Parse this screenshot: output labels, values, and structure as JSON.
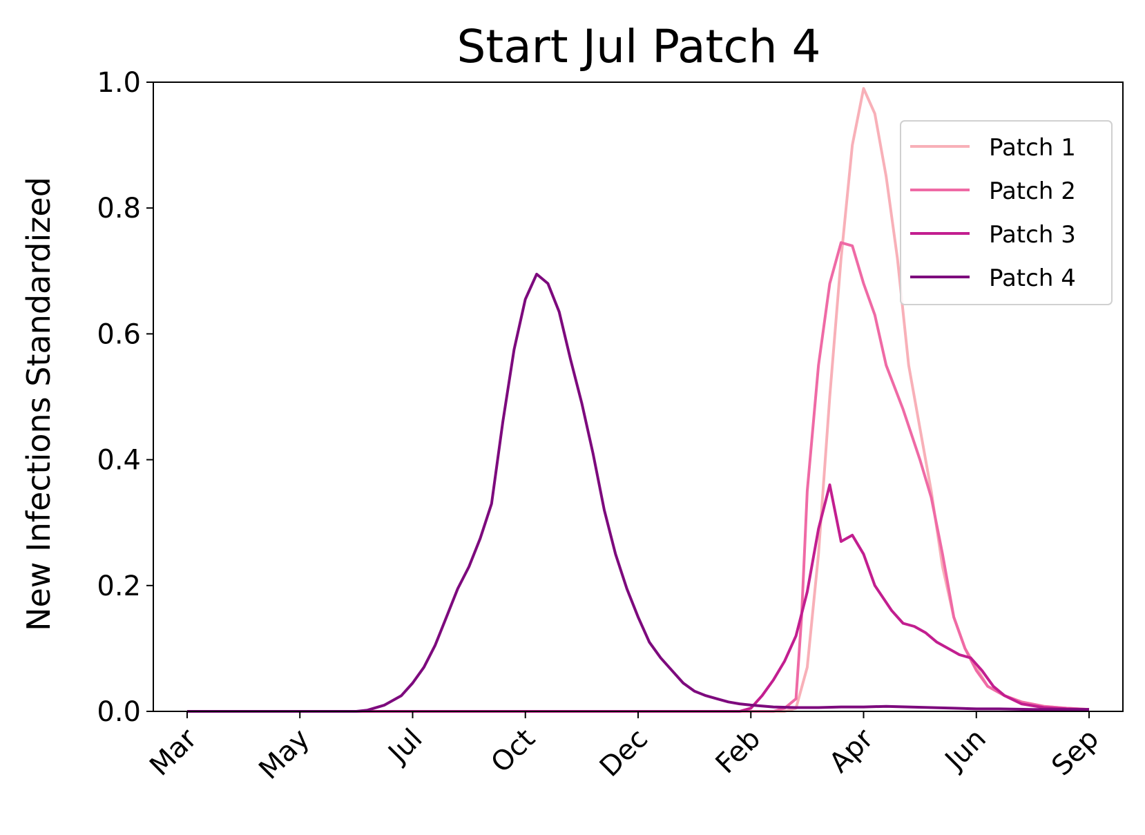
{
  "chart_data": {
    "type": "line",
    "title": "Start Jul Patch 4",
    "xlabel": "",
    "ylabel": "New Infections Standardized",
    "ylim": [
      0,
      1.0
    ],
    "yticks": [
      "0.0",
      "0.2",
      "0.4",
      "0.6",
      "0.8",
      "1.0"
    ],
    "xticks": [
      "Mar",
      "May",
      "Jul",
      "Oct",
      "Dec",
      "Feb",
      "Apr",
      "Jun",
      "Sep"
    ],
    "xlim_index": [
      -0.3,
      8.3
    ],
    "grid": false,
    "legend_position": "upper right",
    "series": [
      {
        "name": "Patch 1",
        "color": "#f8b0b8",
        "points": [
          [
            0,
            0
          ],
          [
            5.3,
            0
          ],
          [
            5.4,
            0.005
          ],
          [
            5.5,
            0.07
          ],
          [
            5.6,
            0.25
          ],
          [
            5.7,
            0.5
          ],
          [
            5.8,
            0.72
          ],
          [
            5.9,
            0.9
          ],
          [
            6.0,
            0.99
          ],
          [
            6.1,
            0.95
          ],
          [
            6.2,
            0.85
          ],
          [
            6.3,
            0.72
          ],
          [
            6.4,
            0.55
          ],
          [
            6.5,
            0.45
          ],
          [
            6.6,
            0.35
          ],
          [
            6.7,
            0.23
          ],
          [
            6.8,
            0.15
          ],
          [
            6.9,
            0.1
          ],
          [
            7.0,
            0.07
          ],
          [
            7.1,
            0.04
          ],
          [
            7.25,
            0.025
          ],
          [
            7.4,
            0.015
          ],
          [
            7.6,
            0.008
          ],
          [
            7.8,
            0.005
          ],
          [
            8.0,
            0.003
          ]
        ]
      },
      {
        "name": "Patch 2",
        "color": "#ef6aa5",
        "points": [
          [
            0,
            0
          ],
          [
            5.2,
            0
          ],
          [
            5.3,
            0.005
          ],
          [
            5.4,
            0.02
          ],
          [
            5.45,
            0.15
          ],
          [
            5.5,
            0.35
          ],
          [
            5.6,
            0.55
          ],
          [
            5.7,
            0.68
          ],
          [
            5.8,
            0.745
          ],
          [
            5.9,
            0.74
          ],
          [
            6.0,
            0.68
          ],
          [
            6.1,
            0.63
          ],
          [
            6.2,
            0.55
          ],
          [
            6.35,
            0.48
          ],
          [
            6.5,
            0.4
          ],
          [
            6.6,
            0.34
          ],
          [
            6.7,
            0.25
          ],
          [
            6.8,
            0.15
          ],
          [
            6.9,
            0.1
          ],
          [
            7.0,
            0.065
          ],
          [
            7.1,
            0.04
          ],
          [
            7.25,
            0.025
          ],
          [
            7.4,
            0.015
          ],
          [
            7.6,
            0.008
          ],
          [
            7.8,
            0.005
          ],
          [
            8.0,
            0.003
          ]
        ]
      },
      {
        "name": "Patch 3",
        "color": "#c21e8f",
        "points": [
          [
            0,
            0
          ],
          [
            4.9,
            0
          ],
          [
            5.0,
            0.005
          ],
          [
            5.1,
            0.025
          ],
          [
            5.2,
            0.05
          ],
          [
            5.3,
            0.08
          ],
          [
            5.4,
            0.12
          ],
          [
            5.5,
            0.19
          ],
          [
            5.6,
            0.29
          ],
          [
            5.7,
            0.36
          ],
          [
            5.8,
            0.27
          ],
          [
            5.9,
            0.28
          ],
          [
            6.0,
            0.25
          ],
          [
            6.1,
            0.2
          ],
          [
            6.25,
            0.16
          ],
          [
            6.35,
            0.14
          ],
          [
            6.45,
            0.135
          ],
          [
            6.55,
            0.125
          ],
          [
            6.65,
            0.11
          ],
          [
            6.75,
            0.1
          ],
          [
            6.85,
            0.09
          ],
          [
            6.95,
            0.085
          ],
          [
            7.05,
            0.065
          ],
          [
            7.15,
            0.04
          ],
          [
            7.25,
            0.025
          ],
          [
            7.4,
            0.012
          ],
          [
            7.6,
            0.006
          ],
          [
            7.8,
            0.004
          ],
          [
            8.0,
            0.003
          ]
        ]
      },
      {
        "name": "Patch 4",
        "color": "#7d0a7d",
        "points": [
          [
            0,
            0
          ],
          [
            1.5,
            0
          ],
          [
            1.6,
            0.002
          ],
          [
            1.75,
            0.01
          ],
          [
            1.9,
            0.025
          ],
          [
            2.0,
            0.045
          ],
          [
            2.1,
            0.07
          ],
          [
            2.2,
            0.105
          ],
          [
            2.3,
            0.15
          ],
          [
            2.4,
            0.195
          ],
          [
            2.5,
            0.23
          ],
          [
            2.6,
            0.275
          ],
          [
            2.7,
            0.33
          ],
          [
            2.8,
            0.46
          ],
          [
            2.9,
            0.575
          ],
          [
            3.0,
            0.655
          ],
          [
            3.1,
            0.695
          ],
          [
            3.2,
            0.68
          ],
          [
            3.3,
            0.635
          ],
          [
            3.4,
            0.56
          ],
          [
            3.5,
            0.49
          ],
          [
            3.6,
            0.41
          ],
          [
            3.7,
            0.32
          ],
          [
            3.8,
            0.25
          ],
          [
            3.9,
            0.195
          ],
          [
            4.0,
            0.15
          ],
          [
            4.1,
            0.11
          ],
          [
            4.2,
            0.085
          ],
          [
            4.3,
            0.065
          ],
          [
            4.4,
            0.045
          ],
          [
            4.5,
            0.032
          ],
          [
            4.6,
            0.025
          ],
          [
            4.7,
            0.02
          ],
          [
            4.8,
            0.015
          ],
          [
            4.9,
            0.012
          ],
          [
            5.0,
            0.01
          ],
          [
            5.2,
            0.007
          ],
          [
            5.4,
            0.006
          ],
          [
            5.6,
            0.006
          ],
          [
            5.8,
            0.007
          ],
          [
            6.0,
            0.007
          ],
          [
            6.2,
            0.008
          ],
          [
            6.4,
            0.007
          ],
          [
            6.6,
            0.006
          ],
          [
            6.8,
            0.005
          ],
          [
            7.0,
            0.004
          ],
          [
            7.2,
            0.004
          ],
          [
            7.5,
            0.003
          ],
          [
            8.0,
            0.003
          ]
        ]
      }
    ]
  }
}
